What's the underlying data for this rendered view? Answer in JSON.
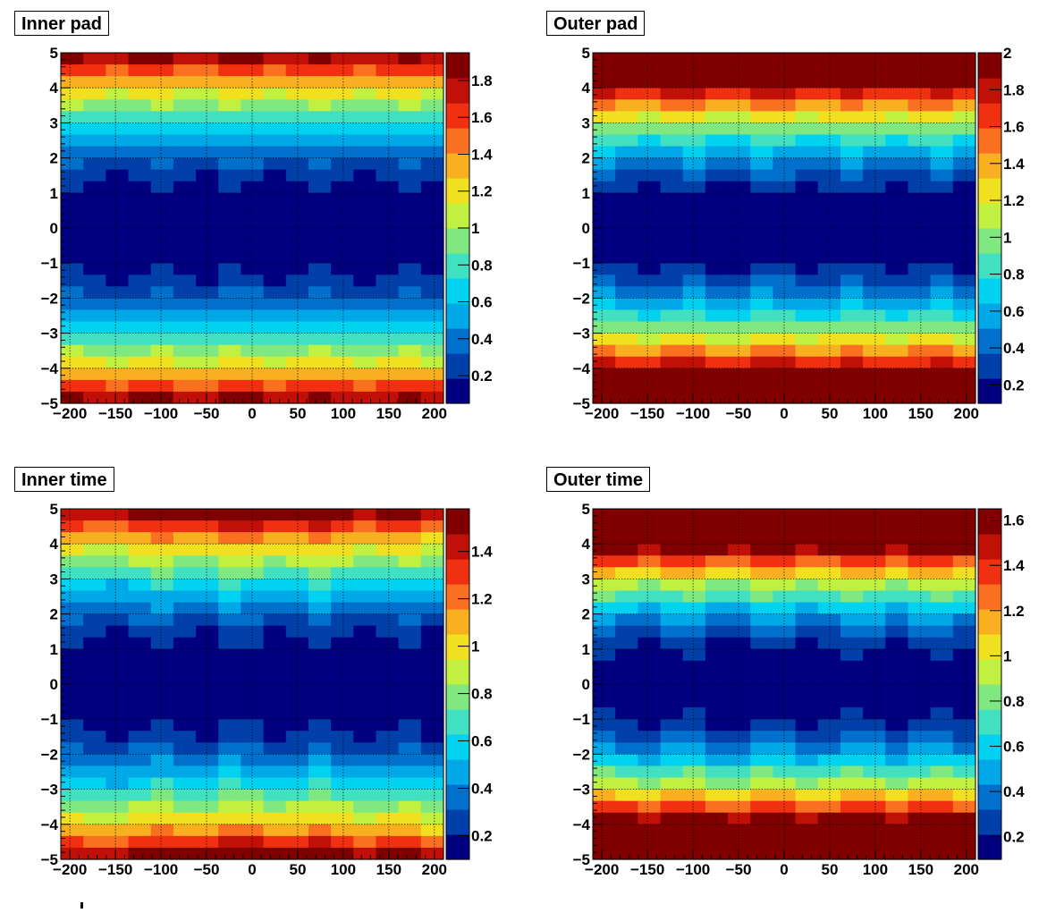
{
  "colorscale": [
    "#000080",
    "#0040a8",
    "#0070cc",
    "#00a8e8",
    "#00d2f0",
    "#40e0c0",
    "#80e880",
    "#c0f040",
    "#f0e020",
    "#f8b020",
    "#f87020",
    "#f03010",
    "#c01008",
    "#800000"
  ],
  "chart_data": [
    {
      "type": "heatmap",
      "title": "Inner pad",
      "xlim": [
        -210,
        210
      ],
      "ylim": [
        -5,
        5
      ],
      "x_ticks": [
        "−200",
        "−150",
        "−100",
        "−50",
        "0",
        "50",
        "100",
        "150",
        "200"
      ],
      "x_tick_values": [
        -200,
        -150,
        -100,
        -50,
        0,
        50,
        100,
        150,
        200
      ],
      "y_ticks": [
        "−5",
        "−4",
        "−3",
        "−2",
        "−1",
        "0",
        "1",
        "2",
        "3",
        "4",
        "5"
      ],
      "y_tick_values": [
        -5,
        -4,
        -3,
        -2,
        -1,
        0,
        1,
        2,
        3,
        4,
        5
      ],
      "z_range": [
        0.05,
        1.95
      ],
      "z_ticks": [
        "0.2",
        "0.4",
        "0.6",
        "0.8",
        "1",
        "1.2",
        "1.4",
        "1.6",
        "1.8"
      ],
      "z_tick_values": [
        0.2,
        0.4,
        0.6,
        0.8,
        1.0,
        1.2,
        1.4,
        1.6,
        1.8
      ],
      "x_bins": 17,
      "y_bins": 30,
      "model": "z ≈ 0.075·y² (peak ≈ 1.9 at |y| = 5)",
      "z_coeff": 0.075,
      "z_xcoeff": 0,
      "grid": true
    },
    {
      "type": "heatmap",
      "title": "Outer pad",
      "xlim": [
        -210,
        210
      ],
      "ylim": [
        -5,
        5
      ],
      "x_ticks": [
        "−200",
        "−150",
        "−100",
        "−50",
        "0",
        "50",
        "100",
        "150",
        "200"
      ],
      "x_tick_values": [
        -200,
        -150,
        -100,
        -50,
        0,
        50,
        100,
        150,
        200
      ],
      "y_ticks": [
        "−5",
        "−4",
        "−3",
        "−2",
        "−1",
        "0",
        "1",
        "2",
        "3",
        "4",
        "5"
      ],
      "y_tick_values": [
        -5,
        -4,
        -3,
        -2,
        -1,
        0,
        1,
        2,
        3,
        4,
        5
      ],
      "z_range": [
        0.1,
        2.0
      ],
      "z_ticks": [
        "0.2",
        "0.4",
        "0.6",
        "0.8",
        "1",
        "1.2",
        "1.4",
        "1.6",
        "1.8",
        "2"
      ],
      "z_tick_values": [
        0.2,
        0.4,
        0.6,
        0.8,
        1.0,
        1.2,
        1.4,
        1.6,
        1.8,
        2.0
      ],
      "x_bins": 17,
      "y_bins": 30,
      "model": "z ≈ 0.11·y² saturating at 2.0",
      "z_coeff": 0.11,
      "z_xcoeff": 0,
      "grid": true
    },
    {
      "type": "heatmap",
      "title": "Inner time",
      "xlim": [
        -210,
        210
      ],
      "ylim": [
        -5,
        5
      ],
      "x_ticks": [
        "−200",
        "−150",
        "−100",
        "−50",
        "0",
        "50",
        "100",
        "150",
        "200"
      ],
      "x_tick_values": [
        -200,
        -150,
        -100,
        -50,
        0,
        50,
        100,
        150,
        200
      ],
      "y_ticks": [
        "−5",
        "−4",
        "−3",
        "−2",
        "−1",
        "0",
        "1",
        "2",
        "3",
        "4",
        "5"
      ],
      "y_tick_values": [
        -5,
        -4,
        -3,
        -2,
        -1,
        0,
        1,
        2,
        3,
        4,
        5
      ],
      "z_range": [
        0.1,
        1.58
      ],
      "z_ticks": [
        "0.2",
        "0.4",
        "0.6",
        "0.8",
        "1",
        "1.2",
        "1.4"
      ],
      "z_tick_values": [
        0.2,
        0.4,
        0.6,
        0.8,
        1.0,
        1.2,
        1.4
      ],
      "x_bins": 17,
      "y_bins": 30,
      "model": "z ≈ 0.062·y² − 0.1·(x/200)² (peak ≈ 1.55 at y = ±5, x = 0)",
      "z_coeff": 0.062,
      "z_xcoeff": 0.1,
      "grid": true
    },
    {
      "type": "heatmap",
      "title": "Outer time",
      "xlim": [
        -210,
        210
      ],
      "ylim": [
        -5,
        5
      ],
      "x_ticks": [
        "−200",
        "−150",
        "−100",
        "−50",
        "0",
        "50",
        "100",
        "150",
        "200"
      ],
      "x_tick_values": [
        -200,
        -150,
        -100,
        -50,
        0,
        50,
        100,
        150,
        200
      ],
      "y_ticks": [
        "−5",
        "−4",
        "−3",
        "−2",
        "−1",
        "0",
        "1",
        "2",
        "3",
        "4",
        "5"
      ],
      "y_tick_values": [
        -5,
        -4,
        -3,
        -2,
        -1,
        0,
        1,
        2,
        3,
        4,
        5
      ],
      "z_range": [
        0.1,
        1.65
      ],
      "z_ticks": [
        "0.2",
        "0.4",
        "0.6",
        "0.8",
        "1",
        "1.2",
        "1.4",
        "1.6"
      ],
      "z_tick_values": [
        0.2,
        0.4,
        0.6,
        0.8,
        1.0,
        1.2,
        1.4,
        1.6
      ],
      "x_bins": 17,
      "y_bins": 30,
      "model": "z ≈ 0.1·y² saturating at 1.65",
      "z_coeff": 0.1,
      "z_xcoeff": 0,
      "grid": true
    }
  ]
}
